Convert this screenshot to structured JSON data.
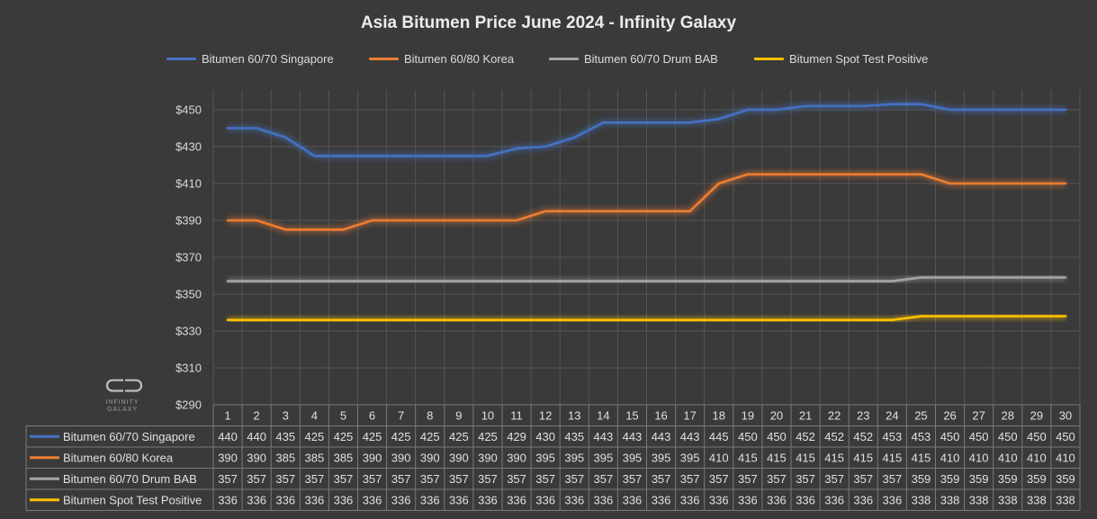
{
  "chart_data": {
    "type": "line",
    "title": "Asia Bitumen Price June 2024 - Infinity Galaxy",
    "x": [
      "1",
      "2",
      "3",
      "4",
      "5",
      "6",
      "7",
      "8",
      "9",
      "10",
      "11",
      "12",
      "13",
      "14",
      "15",
      "16",
      "17",
      "18",
      "19",
      "20",
      "21",
      "22",
      "23",
      "24",
      "25",
      "26",
      "27",
      "28",
      "29",
      "30"
    ],
    "y_ticks": [
      "$290",
      "$310",
      "$330",
      "$350",
      "$370",
      "$390",
      "$410",
      "$430",
      "$450"
    ],
    "ylim": [
      290,
      460
    ],
    "grid": true,
    "legend_position": "top",
    "series": [
      {
        "name": "Bitumen 60/70 Singapore",
        "color": "#4472c4",
        "values": [
          440,
          440,
          435,
          425,
          425,
          425,
          425,
          425,
          425,
          425,
          429,
          430,
          435,
          443,
          443,
          443,
          443,
          445,
          450,
          450,
          452,
          452,
          452,
          453,
          453,
          450,
          450,
          450,
          450,
          450
        ]
      },
      {
        "name": "Bitumen 60/80 Korea",
        "color": "#ed7d31",
        "values": [
          390,
          390,
          385,
          385,
          385,
          390,
          390,
          390,
          390,
          390,
          390,
          395,
          395,
          395,
          395,
          395,
          395,
          410,
          415,
          415,
          415,
          415,
          415,
          415,
          415,
          410,
          410,
          410,
          410,
          410
        ]
      },
      {
        "name": "Bitumen 60/70 Drum BAB",
        "color": "#a5a5a5",
        "values": [
          357,
          357,
          357,
          357,
          357,
          357,
          357,
          357,
          357,
          357,
          357,
          357,
          357,
          357,
          357,
          357,
          357,
          357,
          357,
          357,
          357,
          357,
          357,
          357,
          359,
          359,
          359,
          359,
          359,
          359
        ]
      },
      {
        "name": "Bitumen Spot Test Positive",
        "color": "#ffc000",
        "values": [
          336,
          336,
          336,
          336,
          336,
          336,
          336,
          336,
          336,
          336,
          336,
          336,
          336,
          336,
          336,
          336,
          336,
          336,
          336,
          336,
          336,
          336,
          336,
          336,
          338,
          338,
          338,
          338,
          338,
          338
        ]
      }
    ]
  },
  "watermark": {
    "line1": "INFINITY",
    "line2": "GALAXY"
  }
}
